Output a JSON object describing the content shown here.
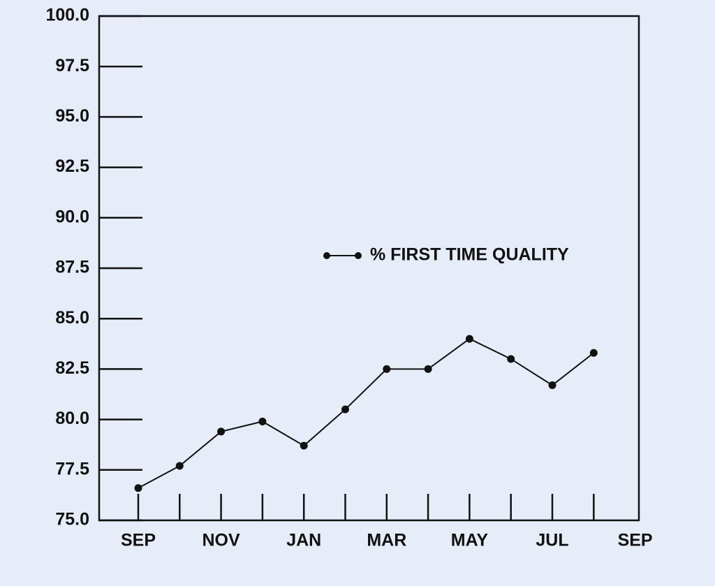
{
  "chart_data": {
    "type": "line",
    "categories": [
      "SEP",
      null,
      "NOV",
      null,
      "JAN",
      null,
      "MAR",
      null,
      "MAY",
      null,
      "JUL",
      null,
      "SEP"
    ],
    "series": [
      {
        "name": "% FIRST TIME QUALITY",
        "color": "#111111",
        "values": [
          76.6,
          77.7,
          79.4,
          79.9,
          78.7,
          80.5,
          82.5,
          82.5,
          84.0,
          83.0,
          81.7,
          83.3,
          null
        ]
      }
    ],
    "ylim": [
      75,
      100
    ],
    "yticks": [
      {
        "value": 75,
        "label": "75.0"
      },
      {
        "value": 77.5,
        "label": "77.5"
      },
      {
        "value": 80,
        "label": "80.0"
      },
      {
        "value": 82.5,
        "label": "82.5"
      },
      {
        "value": 85,
        "label": "85.0"
      },
      {
        "value": 87.5,
        "label": "87.5"
      },
      {
        "value": 90,
        "label": "90.0"
      },
      {
        "value": 92.5,
        "label": "92.5"
      },
      {
        "value": 95,
        "label": "95.0"
      },
      {
        "value": 97.5,
        "label": "97.5"
      },
      {
        "value": 100,
        "label": "100.0"
      }
    ],
    "grid": false
  }
}
